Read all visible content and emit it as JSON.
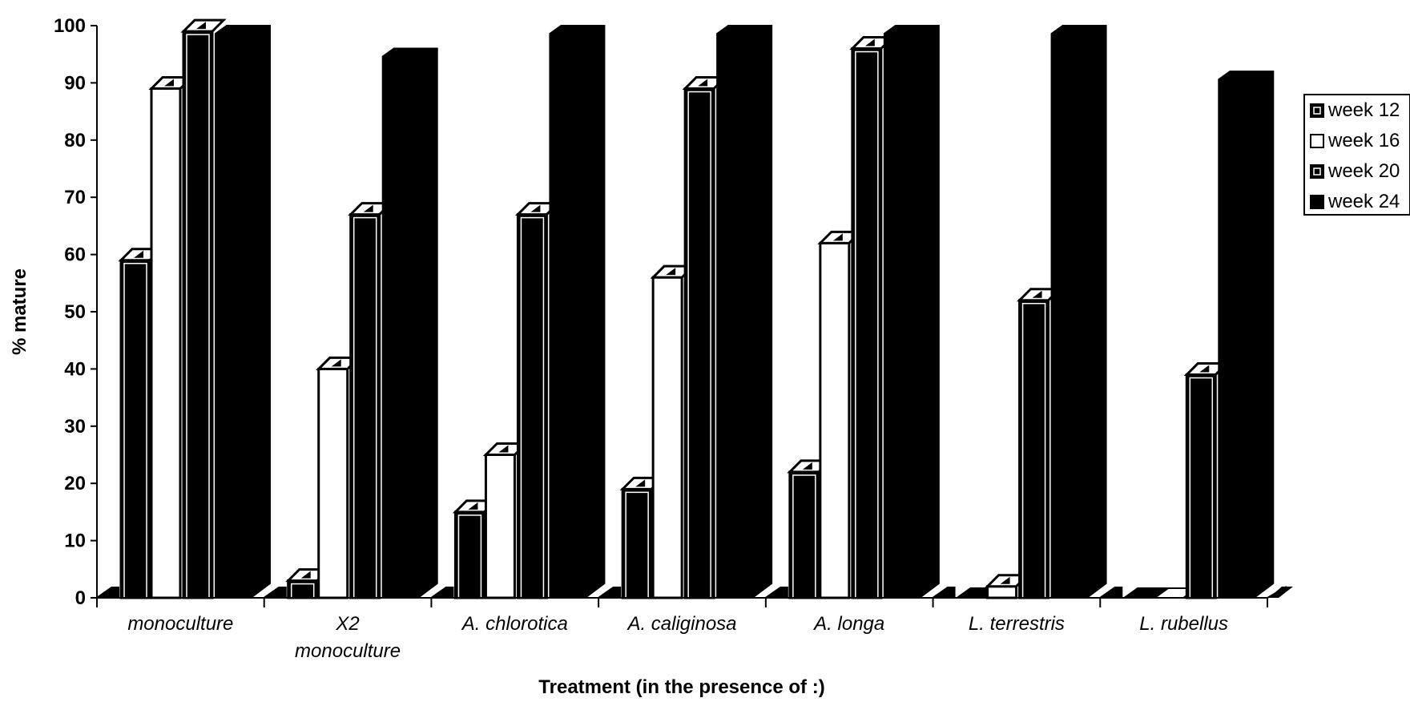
{
  "chart_data": {
    "type": "bar",
    "title": "",
    "xlabel": "Treatment (in the presence of :)",
    "ylabel": "% mature",
    "ylim": [
      0,
      100
    ],
    "yticks": [
      0,
      10,
      20,
      30,
      40,
      50,
      60,
      70,
      80,
      90,
      100
    ],
    "grid": false,
    "legend_position": "right",
    "categories": [
      [
        "monoculture"
      ],
      [
        "X2",
        "monoculture"
      ],
      [
        "A. chlorotica"
      ],
      [
        "A. caliginosa"
      ],
      [
        "A. longa"
      ],
      [
        "L. terrestris"
      ],
      [
        "L. rubellus"
      ]
    ],
    "series": [
      {
        "name": "week 12",
        "values": [
          59,
          3,
          15,
          19,
          22,
          0,
          0
        ],
        "color": "#000000"
      },
      {
        "name": "week 16",
        "values": [
          89,
          40,
          25,
          56,
          62,
          2,
          0
        ],
        "color": "#ffffff"
      },
      {
        "name": "week 20",
        "values": [
          99,
          67,
          67,
          89,
          96,
          52,
          39
        ],
        "color": "#000000"
      },
      {
        "name": "week 24",
        "values": [
          100,
          96,
          100,
          100,
          100,
          100,
          92
        ],
        "color": "#000000"
      }
    ]
  }
}
